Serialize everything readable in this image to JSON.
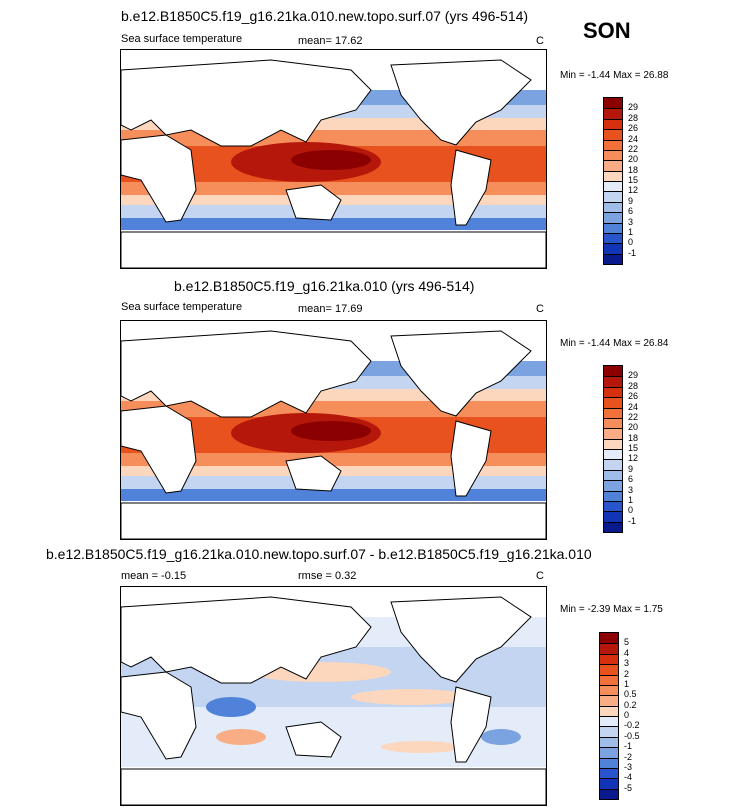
{
  "season": "SON",
  "panels": [
    {
      "title": "b.e12.B1850C5.f19_g16.21ka.010.new.topo.surf.07 (yrs 496-514)",
      "left_label": "Sea surface temperature",
      "stat_label": "mean=  17.62",
      "units": "C",
      "minmax": "Min =  -1.44 Max =  26.88",
      "colorbar_labels": [
        "29",
        "28",
        "26",
        "24",
        "22",
        "20",
        "18",
        "15",
        "12",
        "9",
        "6",
        "3",
        "1",
        "0",
        "-1"
      ],
      "colors": [
        "#8b0000",
        "#b5180a",
        "#d6300e",
        "#e8521e",
        "#f2703a",
        "#f58e5a",
        "#f9ad85",
        "#fcd6bd",
        "#e3ecf8",
        "#c3d5f0",
        "#9fbde8",
        "#7aa3e0",
        "#4f82d8",
        "#2855cc",
        "#1235b8",
        "#0a1a8c"
      ]
    },
    {
      "title": "b.e12.B1850C5.f19_g16.21ka.010 (yrs 496-514)",
      "left_label": "Sea surface temperature",
      "stat_label": "mean=  17.69",
      "units": "C",
      "minmax": "Min =  -1.44 Max =  26.84",
      "colorbar_labels": [
        "29",
        "28",
        "26",
        "24",
        "22",
        "20",
        "18",
        "15",
        "12",
        "9",
        "6",
        "3",
        "1",
        "0",
        "-1"
      ],
      "colors": [
        "#8b0000",
        "#b5180a",
        "#d6300e",
        "#e8521e",
        "#f2703a",
        "#f58e5a",
        "#f9ad85",
        "#fcd6bd",
        "#e3ecf8",
        "#c3d5f0",
        "#9fbde8",
        "#7aa3e0",
        "#4f82d8",
        "#2855cc",
        "#1235b8",
        "#0a1a8c"
      ]
    },
    {
      "title": "b.e12.B1850C5.f19_g16.21ka.010.new.topo.surf.07 - b.e12.B1850C5.f19_g16.21ka.010",
      "left_label": "mean =  -0.15",
      "stat_label": "rmse =   0.32",
      "units": "C",
      "minmax": "Min =  -2.39 Max =   1.75",
      "colorbar_labels": [
        "5",
        "4",
        "3",
        "2",
        "1",
        "0.5",
        "0.2",
        "0",
        "-0.2",
        "-0.5",
        "-1",
        "-2",
        "-3",
        "-4",
        "-5"
      ],
      "colors": [
        "#8b0000",
        "#b5180a",
        "#d6300e",
        "#e8521e",
        "#f2703a",
        "#f58e5a",
        "#f9ad85",
        "#fcd6bd",
        "#e3ecf8",
        "#c3d5f0",
        "#9fbde8",
        "#7aa3e0",
        "#4f82d8",
        "#2855cc",
        "#1235b8",
        "#0a1a8c"
      ]
    }
  ],
  "chart_data": [
    {
      "type": "heatmap",
      "title": "b.e12.B1850C5.f19_g16.21ka.010.new.topo.surf.07 (yrs 496-514)",
      "variable": "Sea surface temperature",
      "units": "C",
      "mean": 17.62,
      "min": -1.44,
      "max": 26.88,
      "levels": [
        -1,
        0,
        1,
        3,
        6,
        9,
        12,
        15,
        18,
        20,
        22,
        24,
        26,
        28,
        29
      ]
    },
    {
      "type": "heatmap",
      "title": "b.e12.B1850C5.f19_g16.21ka.010 (yrs 496-514)",
      "variable": "Sea surface temperature",
      "units": "C",
      "mean": 17.69,
      "min": -1.44,
      "max": 26.84,
      "levels": [
        -1,
        0,
        1,
        3,
        6,
        9,
        12,
        15,
        18,
        20,
        22,
        24,
        26,
        28,
        29
      ]
    },
    {
      "type": "heatmap",
      "title": "b.e12.B1850C5.f19_g16.21ka.010.new.topo.surf.07 - b.e12.B1850C5.f19_g16.21ka.010",
      "units": "C",
      "mean": -0.15,
      "rmse": 0.32,
      "min": -2.39,
      "max": 1.75,
      "levels": [
        -5,
        -4,
        -3,
        -2,
        -1,
        -0.5,
        -0.2,
        0,
        0.2,
        0.5,
        1,
        2,
        3,
        4,
        5
      ]
    }
  ]
}
